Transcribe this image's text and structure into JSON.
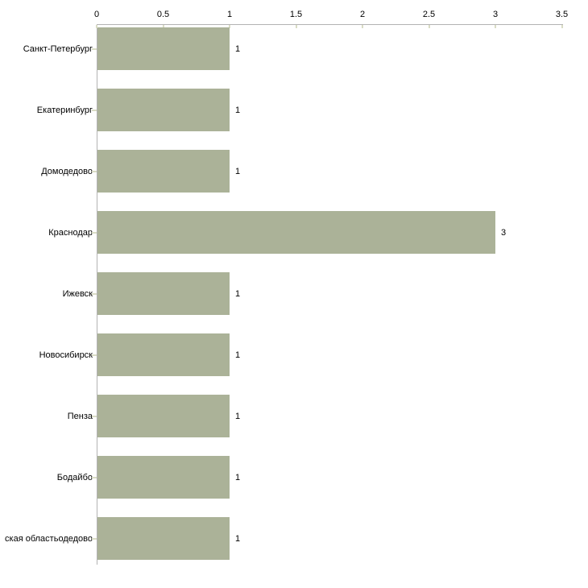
{
  "chart_data": {
    "type": "bar",
    "orientation": "horizontal",
    "title": "",
    "xlabel": "",
    "ylabel": "",
    "categories": [
      "Санкт-Петербург",
      "Екатеринбург",
      "Домодедово",
      "Краснодар",
      "Ижевск",
      "Новосибирск",
      "Пенза",
      "Бодайбо",
      "ская областьодедово"
    ],
    "values": [
      1,
      1,
      1,
      3,
      1,
      1,
      1,
      1,
      1
    ],
    "value_labels": [
      "1",
      "1",
      "1",
      "3",
      "1",
      "1",
      "1",
      "1",
      "1"
    ],
    "x_ticks": [
      "0",
      "0.5",
      "1",
      "1.5",
      "2",
      "2.5",
      "3",
      "3.5"
    ],
    "x_tick_values": [
      0,
      0.5,
      1,
      1.5,
      2,
      2.5,
      3,
      3.5
    ],
    "xlim": [
      0,
      3.5
    ],
    "grid": false,
    "legend": false,
    "axis_position": "top",
    "colors": {
      "bar": "#abb298",
      "axis": "#b3b3b3",
      "tick": "#d9dcc5",
      "text": "#000000",
      "background": "#ffffff"
    }
  }
}
